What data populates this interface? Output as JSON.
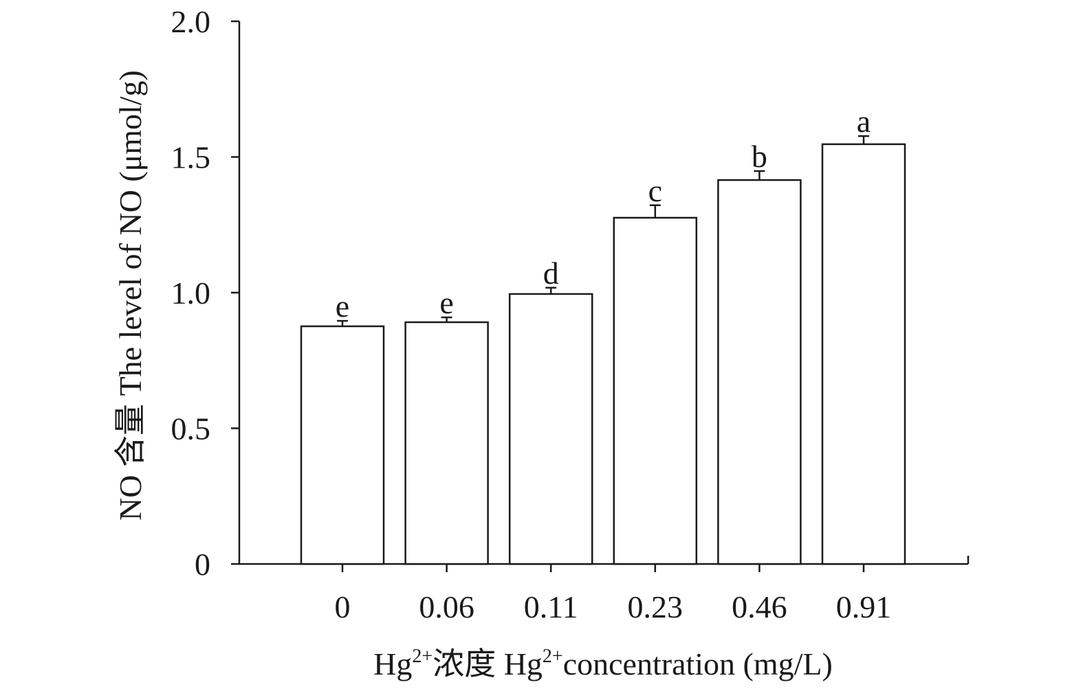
{
  "chart_data": {
    "type": "bar",
    "title": "",
    "xlabel": "Hg²⁺浓度 Hg²⁺concentration (mg/L)",
    "xlabel_parts": {
      "a": "Hg",
      "sup1": "2+",
      "b": "浓度 Hg",
      "sup2": "2+",
      "c": "concentration (mg/L)"
    },
    "ylabel": "NO 含量 The level of NO (μmol/g)",
    "ylim": [
      0,
      2.0
    ],
    "yticks": [
      0,
      0.5,
      1.0,
      1.5,
      2.0
    ],
    "ytick_labels": [
      "0",
      "0.5",
      "1.0",
      "1.5",
      "2.0"
    ],
    "categories": [
      "0",
      "0.06",
      "0.11",
      "0.23",
      "0.46",
      "0.91"
    ],
    "values": [
      0.876,
      0.891,
      0.995,
      1.276,
      1.415,
      1.547
    ],
    "errors": [
      0.02,
      0.018,
      0.023,
      0.046,
      0.033,
      0.03
    ],
    "annotations": [
      "e",
      "e",
      "d",
      "c",
      "b",
      "a"
    ],
    "grid": false,
    "bar_fill": "#ffffff",
    "stroke": "#1a1a1a"
  }
}
